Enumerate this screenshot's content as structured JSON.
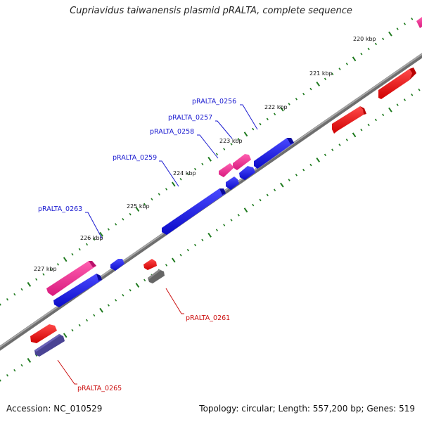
{
  "title": "Cupriavidus taiwanensis plasmid pRALTA, complete sequence",
  "footer": {
    "accession": "Accession: NC_010529",
    "topology": "Topology: circular; Length: 557,200 bp; Genes: 519"
  },
  "colors": {
    "backbone": "#8a8a8a",
    "tick": "#1e7a1e",
    "blue_gene": "#1010e0",
    "pink_gene": "#ee2a8c",
    "red_gene": "#ee1111",
    "gray_gene": "#666666",
    "slate_gene": "#4a4394",
    "label_forward": "#1a1ad0",
    "label_reverse": "#cc1111"
  },
  "kbp_labels": [
    "220 kbp",
    "221 kbp",
    "222 kbp",
    "223 kbp",
    "224 kbp",
    "225 kbp",
    "226 kbp",
    "227 kbp"
  ],
  "gene_labels": {
    "forward": [
      "pRALTA_0256",
      "pRALTA_0257",
      "pRALTA_0258",
      "pRALTA_0259",
      "pRALTA_0263"
    ],
    "reverse": [
      "pRALTA_0261",
      "pRALTA_0265"
    ]
  }
}
